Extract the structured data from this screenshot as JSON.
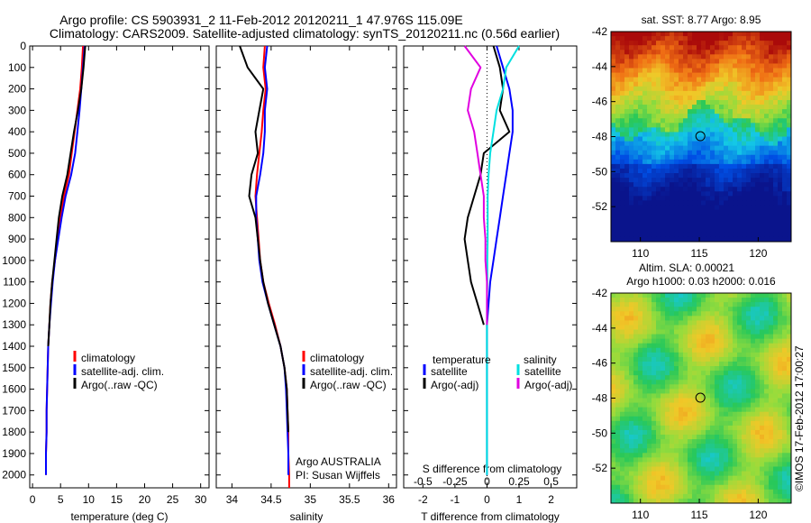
{
  "header": {
    "line1": "Argo profile: CS 5903931_2 11-Feb-2012 20120211_1 47.976S 115.09E",
    "line2": "Climatology: CARS2009. Satellite-adjusted climatology: synTS_20120211.nc (0.56d earlier)"
  },
  "watermark": "©IMOS 17-Feb-2012 17:00:27",
  "colors": {
    "climatology": "#ff0000",
    "satellite": "#0000ff",
    "argo": "#000000",
    "salinity_satellite": "#00e0e0",
    "salinity_argo": "#e000e0"
  },
  "chart_data": [
    {
      "type": "line",
      "xlabel": "temperature (deg C)",
      "ylabel": "",
      "xlim": [
        -0.5,
        31.5
      ],
      "ylim": [
        2060,
        0
      ],
      "xticks": [
        "0",
        "5",
        "10",
        "15",
        "20",
        "25",
        "30"
      ],
      "yticks": [
        "0",
        "100",
        "200",
        "300",
        "400",
        "500",
        "600",
        "700",
        "800",
        "900",
        "1000",
        "1100",
        "1200",
        "1300",
        "1400",
        "1500",
        "1600",
        "1700",
        "1800",
        "1900",
        "2000"
      ],
      "legend": [
        "climatology",
        "satellite-adj. clim.",
        "Argo(..raw -QC)"
      ],
      "series": [
        {
          "name": "climatology",
          "x": [
            9.0,
            8.8,
            8.5,
            8.0,
            7.5,
            7.0,
            6.5,
            5.6,
            5.0,
            4.5,
            4.0,
            3.5,
            3.2,
            3.0,
            2.8,
            2.7,
            2.6,
            2.5,
            2.5,
            2.4,
            2.4
          ],
          "y": [
            0,
            100,
            200,
            300,
            400,
            500,
            600,
            700,
            800,
            900,
            1000,
            1100,
            1200,
            1300,
            1400,
            1500,
            1600,
            1700,
            1800,
            1900,
            2000
          ]
        },
        {
          "name": "satellite-adj. clim.",
          "x": [
            9.3,
            9.0,
            8.7,
            8.4,
            8.0,
            7.6,
            6.9,
            5.9,
            5.2,
            4.6,
            4.0,
            3.6,
            3.3,
            3.0,
            2.8,
            2.7,
            2.6,
            2.5,
            2.5,
            2.4,
            2.4
          ],
          "y": [
            0,
            100,
            200,
            300,
            400,
            500,
            600,
            700,
            800,
            900,
            1000,
            1100,
            1200,
            1300,
            1400,
            1500,
            1600,
            1700,
            1800,
            1900,
            2000
          ]
        },
        {
          "name": "Argo(..raw -QC)",
          "x": [
            9.4,
            9.1,
            8.7,
            8.1,
            7.4,
            6.8,
            6.2,
            5.3,
            4.7,
            4.3,
            3.9,
            3.5,
            3.2,
            3.0,
            2.8
          ],
          "y": [
            0,
            100,
            200,
            300,
            400,
            500,
            600,
            700,
            800,
            900,
            1000,
            1100,
            1200,
            1300,
            1400
          ]
        }
      ]
    },
    {
      "type": "line",
      "xlabel": "salinity",
      "xlim": [
        33.8,
        36.1
      ],
      "ylim": [
        2060,
        0
      ],
      "xticks": [
        "34",
        "34.5",
        "35",
        "35.5",
        "36"
      ],
      "legend": [
        "climatology",
        "satellite-adj. clim.",
        "Argo(..raw -QC)"
      ],
      "annotations": [
        "Argo AUSTRALIA",
        "PI: Susan Wijffels"
      ],
      "series": [
        {
          "name": "climatology",
          "x": [
            34.42,
            34.4,
            34.43,
            34.4,
            34.38,
            34.35,
            34.32,
            34.3,
            34.32,
            34.34,
            34.36,
            34.4,
            34.47,
            34.55,
            34.62,
            34.67,
            34.7,
            34.71,
            34.72,
            34.72,
            34.73,
            34.73
          ],
          "y": [
            0,
            100,
            200,
            300,
            400,
            500,
            600,
            700,
            800,
            900,
            1000,
            1100,
            1200,
            1300,
            1400,
            1500,
            1600,
            1700,
            1800,
            1900,
            2000,
            2060
          ]
        },
        {
          "name": "satellite-adj. clim.",
          "x": [
            34.45,
            34.42,
            34.45,
            34.42,
            34.42,
            34.4,
            34.36,
            34.31,
            34.31,
            34.33,
            34.35,
            34.39,
            34.46,
            34.54,
            34.62,
            34.67,
            34.69,
            34.7,
            34.71,
            34.72,
            34.72
          ],
          "y": [
            0,
            100,
            200,
            300,
            400,
            500,
            600,
            700,
            800,
            900,
            1000,
            1100,
            1200,
            1300,
            1400,
            1500,
            1600,
            1700,
            1800,
            1900,
            2000
          ]
        },
        {
          "name": "Argo(..raw -QC)",
          "x": [
            34.1,
            34.2,
            34.4,
            34.35,
            34.3,
            34.33,
            34.25,
            34.22,
            34.3,
            34.33,
            34.36,
            34.4,
            34.46,
            34.54,
            34.62,
            34.67,
            34.7,
            34.71,
            34.72
          ],
          "y": [
            0,
            100,
            200,
            300,
            400,
            500,
            600,
            700,
            800,
            900,
            1000,
            1100,
            1200,
            1300,
            1400,
            1500,
            1600,
            1700,
            1800
          ]
        }
      ]
    },
    {
      "type": "line",
      "xlabel": "T difference from climatology",
      "xlim": [
        -2.6,
        2.8
      ],
      "ylim": [
        2060,
        0
      ],
      "xticks": [
        "-2",
        "-1",
        "0",
        "1",
        "2"
      ],
      "secondary_xlabel": "S difference from climatology",
      "secondary_xticks": [
        "-0.5",
        "-0.25",
        "0",
        "0.25",
        "0.5"
      ],
      "legend_headers": [
        "temperature",
        "salinity"
      ],
      "legend": [
        "satellite",
        "Argo(-adj)",
        "satellite",
        "Argo(-adj)"
      ],
      "series": [
        {
          "name": "satellite",
          "x": [
            0.3,
            0.5,
            0.7,
            0.8,
            0.8,
            0.7,
            0.6,
            0.5,
            0.4,
            0.3,
            0.2,
            0.1,
            0.05,
            0.0,
            0.0,
            0.0,
            0.0,
            0.0,
            0.0,
            0.0,
            0.0
          ],
          "y": [
            0,
            100,
            200,
            300,
            400,
            500,
            600,
            700,
            800,
            900,
            1000,
            1100,
            1200,
            1300,
            1400,
            1500,
            1600,
            1700,
            1800,
            1900,
            2000
          ]
        },
        {
          "name": "Argo(-adj)",
          "x": [
            0.2,
            0.4,
            0.5,
            0.4,
            0.7,
            -0.1,
            -0.2,
            -0.4,
            -0.6,
            -0.7,
            -0.6,
            -0.5,
            -0.3,
            -0.1
          ],
          "y": [
            0,
            100,
            200,
            300,
            400,
            500,
            600,
            700,
            800,
            900,
            1000,
            1100,
            1200,
            1300
          ]
        },
        {
          "name": "satellite",
          "x": [
            1.0,
            0.6,
            0.5,
            0.3,
            0.2,
            0.1,
            0.05,
            0.02,
            0.02,
            0.02,
            0.01,
            0.01,
            0.0,
            0.0,
            0.0,
            0.0,
            0.0,
            0.0,
            0.0,
            0.0,
            0.0
          ],
          "y": [
            0,
            100,
            200,
            300,
            400,
            500,
            600,
            700,
            800,
            900,
            1000,
            1100,
            1200,
            1300,
            1400,
            1500,
            1600,
            1700,
            1800,
            1900,
            2000
          ]
        },
        {
          "name": "Argo(-adj)",
          "x": [
            -0.7,
            -0.2,
            -0.5,
            -0.6,
            -0.4,
            -0.3,
            -0.2,
            -0.1,
            -0.1,
            -0.05,
            -0.05,
            0.0,
            0.0,
            0.0
          ],
          "y": [
            0,
            100,
            200,
            300,
            400,
            500,
            600,
            700,
            800,
            900,
            1000,
            1100,
            1200,
            1300
          ]
        }
      ]
    },
    {
      "type": "heatmap",
      "title": "sat. SST: 8.77 Argo: 8.95",
      "xlim": [
        107.5,
        122.8
      ],
      "ylim": [
        -54,
        -42
      ],
      "xticks": [
        "110",
        "115",
        "120"
      ],
      "yticks": [
        "-42",
        "-44",
        "-46",
        "-48",
        "-50",
        "-52"
      ],
      "marker": {
        "x": 115.09,
        "y": -47.976
      }
    },
    {
      "type": "heatmap",
      "title": "Altim. SLA: 0.00021",
      "subtitle": "Argo h1000: 0.03 h2000: 0.016",
      "xlim": [
        107.5,
        122.8
      ],
      "ylim": [
        -54,
        -42
      ],
      "xticks": [
        "110",
        "115",
        "120"
      ],
      "yticks": [
        "-42",
        "-44",
        "-46",
        "-48",
        "-50",
        "-52"
      ],
      "marker": {
        "x": 115.09,
        "y": -47.976
      }
    }
  ]
}
